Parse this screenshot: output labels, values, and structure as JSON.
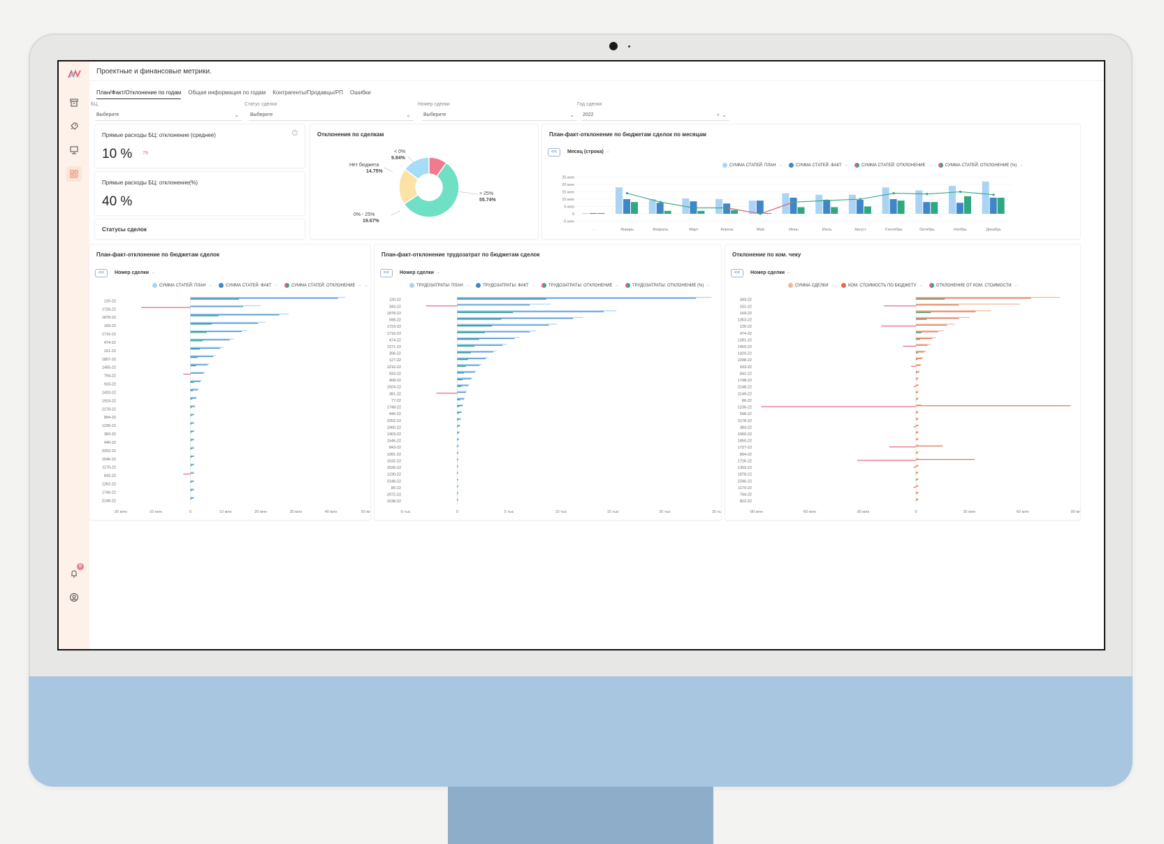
{
  "app": {
    "title": "Проектные и финансовые метрики.",
    "tabs": [
      {
        "label": "План/Факт/Отклонение по годам",
        "active": true
      },
      {
        "label": "Общая информация по годам",
        "active": false
      },
      {
        "label": "Контрагенты/Продавцы/РП",
        "active": false
      },
      {
        "label": "Ошибки",
        "active": false
      }
    ],
    "sidebar_icons": [
      "archive-icon",
      "rocket-icon",
      "presentation-icon",
      "dashboard-icon"
    ],
    "notifications_count": "8"
  },
  "filters": {
    "bc": {
      "label": "БЦ",
      "value": "Выберите"
    },
    "status": {
      "label": "Статус сделки",
      "value": "Выберите"
    },
    "deal": {
      "label": "Номер сделки",
      "value": "Выберите"
    },
    "year": {
      "label": "Год сделки",
      "value": "2022"
    }
  },
  "kpi": {
    "avg": {
      "title": "Прямые расходы БЦ: отклонение (среднее)",
      "value": "10 %",
      "sub": "79"
    },
    "pct": {
      "title": "Прямые расходы БЦ: отклонение(%)",
      "value": "40 %"
    },
    "statuses": {
      "title": "Статусы сделок"
    }
  },
  "colors": {
    "plan": "#a9d4f5",
    "fact": "#3f86c9",
    "dev": "#2fa87f",
    "neg": "#e8607e",
    "sale": "#f3b596",
    "cost": "#d8714d",
    "donut": [
      "#6fe0c4",
      "#fce3a5",
      "#a5dcf7",
      "#f27a8e"
    ]
  },
  "charts": {
    "donut": {
      "title": "Отклонения по сделкам",
      "slices": [
        {
          "name": "> 25%",
          "pct": "55.74%",
          "value": 55.74
        },
        {
          "name": "0% - 25%",
          "pct": "19.67%",
          "value": 19.67
        },
        {
          "name": "Нет бюджета",
          "pct": "14.75%",
          "value": 14.75
        },
        {
          "name": "< 0%",
          "pct": "9.84%",
          "value": 9.84
        }
      ]
    },
    "monthly": {
      "title": "План-факт-отклонение по бюджетам сделок по месяцам",
      "axis": "Месяц (строка)",
      "legend": [
        "СУММА СТАТЕЙ: ПЛАН",
        "СУММА СТАТЕЙ: ФАКТ",
        "СУММА СТАТЕЙ: ОТКЛОНЕНИЕ",
        "СУММА СТАТЕЙ: ОТКЛОНЕНИЕ (%)"
      ],
      "categories": [
        "-",
        "Январь",
        "Февраль",
        "Март",
        "Апрель",
        "Май",
        "Июнь",
        "Июль",
        "Август",
        "Сентябрь",
        "Октябрь",
        "Ноябрь",
        "Декабрь"
      ],
      "yticks": [
        "25 млн",
        "20 млн",
        "15 млн",
        "10 млн",
        "5 млн",
        "0",
        "-5 млн"
      ],
      "plan": [
        0.5,
        18,
        10,
        10.5,
        10,
        9,
        14,
        13,
        13,
        18,
        16,
        19,
        22
      ],
      "fact": [
        0.5,
        10,
        7.5,
        8.5,
        7,
        9,
        11,
        9.5,
        9.5,
        10,
        8,
        7.5,
        11
      ],
      "dev": [
        0.5,
        8,
        2,
        2,
        2.5,
        0.5,
        4.5,
        4.5,
        5,
        9,
        8,
        12,
        11
      ],
      "line": [
        null,
        14,
        8,
        4,
        4,
        0,
        8,
        9,
        10,
        14,
        13.5,
        15,
        13
      ]
    },
    "deals_budget": {
      "title": "План-факт-отклонение по бюджетам сделок",
      "axis": "Номер сделки",
      "legend": [
        "СУММА СТАТЕЙ: ПЛАН",
        "СУММА СТАТЕЙ: ФАКТ",
        "СУММА СТАТЕЙ: ОТКЛОНЕНИЕ"
      ],
      "labels": [
        "120-22",
        "1726-22",
        "1878-22",
        "169-22",
        "1716-22",
        "474-22",
        "151-22",
        "1807-22",
        "1455-22",
        "794-22",
        "933-22",
        "1420-22",
        "1924-22",
        "2178-22",
        "894-22",
        "1236-22",
        "383-22",
        "440-22",
        "2202-22",
        "1546-22",
        "1170-22",
        "843-22",
        "1262-22",
        "1740-22",
        "2148-22"
      ],
      "xticks": [
        "-20 млн",
        "-10 млн",
        "0",
        "10 млн",
        "20 млн",
        "30 млн",
        "40 млн",
        "50 мл"
      ]
    },
    "deals_labor": {
      "title": "План-факт-отклонение трудозатрат по бюджетам сделок",
      "axis": "Номер сделки",
      "legend": [
        "ТРУДОЗАТРАТЫ: ПЛАН",
        "ТРУДОЗАТРАТЫ: ФАКТ",
        "ТРУДОЗАТРАТЫ: ОТКЛОНЕНИЕ",
        "ТРУДОЗАТРАТЫ: ОТКЛОНЕНИЕ (%)"
      ],
      "labels": [
        "120-22",
        "343-22",
        "1878-22",
        "598-22",
        "1723-22",
        "1716-22",
        "474-22",
        "1271-22",
        "306-22",
        "127-22",
        "1216-22",
        "933-22",
        "408-22",
        "1924-22",
        "381-22",
        "77-22",
        "1748-22",
        "440-22",
        "2202-22",
        "1060-22",
        "1303-22",
        "1546-22",
        "843-22",
        "1281-22",
        "1532-22",
        "2039-22",
        "1230-22",
        "2148-22",
        "86-22",
        "2072-22",
        "2238-22"
      ],
      "xticks": [
        "-5 тыс",
        "0",
        "5 тыс",
        "10 тыс",
        "15 тыс",
        "20 тыс",
        "25 ты"
      ]
    },
    "deals_check": {
      "title": "Отклонение по ком. чеку",
      "axis": "Номер сделки",
      "legend": [
        "СУММА СДЕЛКИ",
        "КОМ. СТОИМОСТЬ ПО БЮДЖЕТУ",
        "ОТКЛОНЕНИЕ ОТ КОМ. СТОИМОСТИ"
      ],
      "labels": [
        "343-22",
        "151-22",
        "169-22",
        "1353-22",
        "126-22",
        "474-22",
        "1281-22",
        "1455-22",
        "1420-22",
        "2298-22",
        "933-22",
        "842-22",
        "1748-22",
        "2148-22",
        "2149-22",
        "86-22",
        "1236-22",
        "598-22",
        "2178-22",
        "383-22",
        "1060-22",
        "1850-22",
        "1727-22",
        "894-22",
        "1726-22",
        "1303-22",
        "1878-22",
        "2246-22",
        "1170-22",
        "794-22",
        "822-22"
      ],
      "xticks": [
        "-90 млн",
        "-60 млн",
        "-30 млн",
        "0",
        "30 млн",
        "60 млн",
        "90 мл"
      ]
    }
  }
}
